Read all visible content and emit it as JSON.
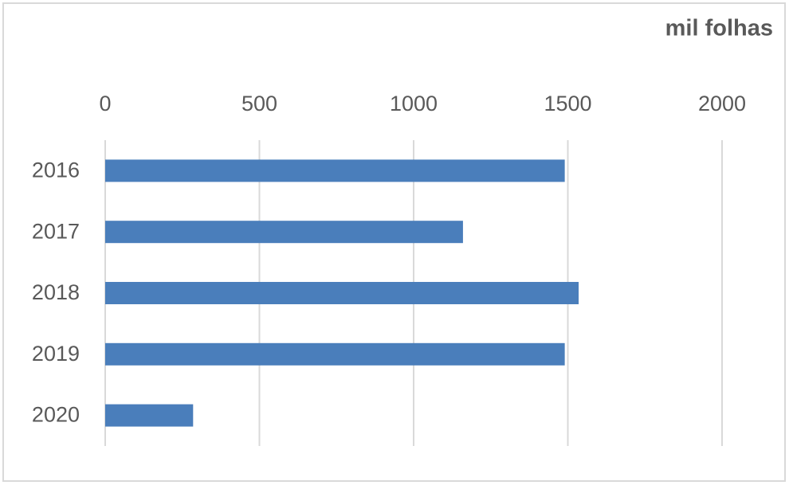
{
  "chart_data": {
    "type": "bar",
    "orientation": "horizontal",
    "title": "mil folhas",
    "categories": [
      "2016",
      "2017",
      "2018",
      "2019",
      "2020"
    ],
    "values": [
      1490,
      1160,
      1535,
      1490,
      285
    ],
    "color": "#4a7ebb",
    "xlim": [
      0,
      2000
    ],
    "xticks": [
      0,
      500,
      1000,
      1500,
      2000
    ],
    "grid": true
  }
}
